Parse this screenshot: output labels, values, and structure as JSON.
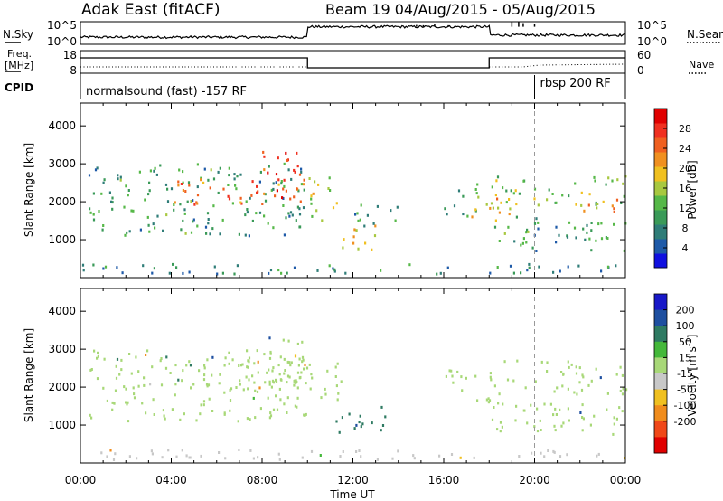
{
  "header": {
    "radar": "Adak East (fitACF)",
    "beam_info": "Beam 19 04/Aug/2015 - 05/Aug/2015"
  },
  "noise_panel": {
    "left_label": "N.Sky",
    "right_label": "N.Search",
    "left_ticks": [
      "10^5",
      "10^0"
    ],
    "right_ticks": [
      "10^5",
      "10^0"
    ]
  },
  "freq_panel": {
    "left_label_1": "Freq.",
    "left_label_2": "[MHz]",
    "right_label": "Nave",
    "left_ticks": [
      "18",
      "8"
    ],
    "right_ticks": [
      "60",
      "0"
    ]
  },
  "cpid_panel": {
    "label": "CPID",
    "modes": [
      {
        "text": "normalsound (fast) -157 RF",
        "start_hour": 0
      },
      {
        "text": "rbsp 200 RF",
        "start_hour": 20.0
      }
    ]
  },
  "chart_data": [
    {
      "type": "heatmap",
      "quantity": "Power",
      "ylabel": "Slant Range [km]",
      "ylim": [
        0,
        4600
      ],
      "yticks": [
        1000,
        2000,
        3000,
        4000
      ],
      "colorbar": {
        "label": "Power [dB]",
        "ticks": [
          "4",
          "8",
          "12",
          "16",
          "20",
          "24",
          "28"
        ],
        "range": [
          0,
          32
        ],
        "colors": [
          "#1010e0",
          "#1e5aa8",
          "#2f7d78",
          "#3a9a58",
          "#56b848",
          "#a8c840",
          "#f0c020",
          "#f09020",
          "#f06020",
          "#f03020",
          "#e00000"
        ]
      },
      "echo_regions": [
        {
          "t0": 0.3,
          "t1": 10.0,
          "r0": 1100,
          "r1": 3000,
          "power": 10
        },
        {
          "t0": 4.0,
          "t1": 10.0,
          "r0": 1900,
          "r1": 2600,
          "power": 24
        },
        {
          "t0": 8.0,
          "t1": 9.8,
          "r0": 2000,
          "r1": 3400,
          "power": 27
        },
        {
          "t0": 10.0,
          "t1": 11.5,
          "r0": 1500,
          "r1": 2700,
          "power": 16
        },
        {
          "t0": 11.2,
          "t1": 13.0,
          "r0": 700,
          "r1": 1400,
          "power": 18
        },
        {
          "t0": 12.0,
          "t1": 14.0,
          "r0": 1300,
          "r1": 2000,
          "power": 8
        },
        {
          "t0": 16.0,
          "t1": 17.5,
          "r0": 1600,
          "r1": 2500,
          "power": 12
        },
        {
          "t0": 17.0,
          "t1": 19.0,
          "r0": 1500,
          "r1": 2200,
          "power": 20
        },
        {
          "t0": 18.0,
          "t1": 24.0,
          "r0": 1800,
          "r1": 2700,
          "power": 14
        },
        {
          "t0": 22.0,
          "t1": 24.0,
          "r0": 1700,
          "r1": 2200,
          "power": 22
        },
        {
          "t0": 18.0,
          "t1": 24.0,
          "r0": 700,
          "r1": 1600,
          "power": 10
        },
        {
          "t0": 0.0,
          "t1": 24.0,
          "r0": 80,
          "r1": 350,
          "power": 8
        }
      ]
    },
    {
      "type": "heatmap",
      "quantity": "Velocity",
      "ylabel": "Slant Range [km]",
      "ylim": [
        0,
        4600
      ],
      "yticks": [
        1000,
        2000,
        3000,
        4000
      ],
      "xlabel": "Time UT",
      "xticks": [
        "00:00",
        "04:00",
        "08:00",
        "12:00",
        "16:00",
        "20:00",
        "00:00"
      ],
      "colorbar": {
        "label": "Velocity [m s^-1]",
        "ticks": [
          "200",
          "100",
          "50",
          "15",
          "-15",
          "-50",
          "-100",
          "-200"
        ],
        "colors": [
          "#1818c8",
          "#1e4fa0",
          "#2e7a62",
          "#44b83a",
          "#a8d878",
          "#c8c8c8",
          "#f0c020",
          "#f08c1c",
          "#f04818",
          "#e00000"
        ]
      },
      "echo_regions": [
        {
          "t0": 0.3,
          "t1": 10.0,
          "r0": 1100,
          "r1": 3000,
          "velocity": 0
        },
        {
          "t0": 4.0,
          "t1": 10.0,
          "r0": 1900,
          "r1": 2600,
          "velocity": 0
        },
        {
          "t0": 8.0,
          "t1": 9.8,
          "r0": 2000,
          "r1": 3400,
          "velocity": 0
        },
        {
          "t0": 10.0,
          "t1": 11.5,
          "r0": 1500,
          "r1": 2700,
          "velocity": 0
        },
        {
          "t0": 11.2,
          "t1": 13.5,
          "r0": 700,
          "r1": 1500,
          "velocity": 70
        },
        {
          "t0": 16.0,
          "t1": 18.0,
          "r0": 1600,
          "r1": 2500,
          "velocity": 0
        },
        {
          "t0": 18.0,
          "t1": 24.0,
          "r0": 1800,
          "r1": 2700,
          "velocity": 0
        },
        {
          "t0": 18.0,
          "t1": 24.0,
          "r0": 700,
          "r1": 1600,
          "velocity": 0
        },
        {
          "t0": 0.0,
          "t1": 24.0,
          "r0": 80,
          "r1": 350,
          "velocity": -40
        }
      ]
    }
  ],
  "colors": {
    "line": "#000000",
    "mode_change": "#999999"
  }
}
